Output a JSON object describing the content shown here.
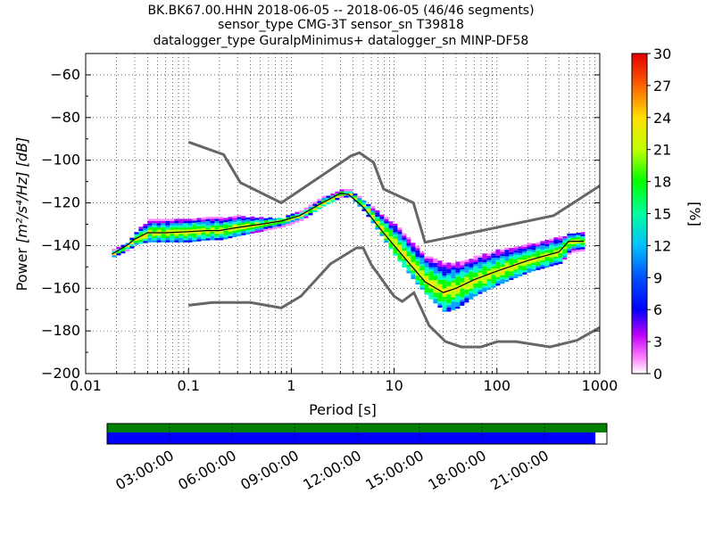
{
  "chart_data": [
    {
      "type": "heatmap",
      "title_lines": [
        "BK.BK67.00.HHN   2018-06-05 -- 2018-06-05  (46/46 segments)",
        "sensor_type CMG-3T sensor_sn T39818",
        "datalogger_type GuralpMinimus+ datalogger_sn MINP-DF58"
      ],
      "xlabel": "Period [s]",
      "ylabel_prefix": "Power",
      "ylabel_units": "[m²/s⁴/Hz] [dB]",
      "x_scale": "log",
      "xlim": [
        0.01,
        1000
      ],
      "ylim": [
        -200,
        -50
      ],
      "x_ticks": [
        0.01,
        0.1,
        1,
        10,
        100,
        1000
      ],
      "x_tick_labels": [
        "0.01",
        "0.1",
        "1",
        "10",
        "100",
        "1000"
      ],
      "y_ticks": [
        -200,
        -180,
        -160,
        -140,
        -120,
        -100,
        -80,
        -60
      ],
      "y_tick_labels": [
        "−200",
        "−180",
        "−160",
        "−140",
        "−120",
        "−100",
        "−80",
        "−60"
      ],
      "grid": true,
      "colorbar": {
        "label": "[%]",
        "range": [
          0,
          30
        ],
        "ticks": [
          0,
          3,
          6,
          9,
          12,
          15,
          18,
          21,
          24,
          27,
          30
        ],
        "tick_labels": [
          "0",
          "3",
          "6",
          "9",
          "12",
          "15",
          "18",
          "21",
          "24",
          "27",
          "30"
        ]
      },
      "series": [
        {
          "role": "new-high-noise-model",
          "color": "#666666",
          "points": [
            [
              0.1,
              -91.5
            ],
            [
              0.22,
              -97.4
            ],
            [
              0.32,
              -110.5
            ],
            [
              0.8,
              -120
            ],
            [
              3.8,
              -98
            ],
            [
              4.6,
              -96.5
            ],
            [
              6.3,
              -101
            ],
            [
              7.9,
              -113.5
            ],
            [
              15.4,
              -120
            ],
            [
              20,
              -138.5
            ],
            [
              354.8,
              -126
            ],
            [
              1000,
              -112
            ]
          ]
        },
        {
          "role": "new-low-noise-model",
          "color": "#666666",
          "points": [
            [
              0.1,
              -168
            ],
            [
              0.17,
              -166.7
            ],
            [
              0.4,
              -166.7
            ],
            [
              0.8,
              -169.2
            ],
            [
              1.24,
              -163.7
            ],
            [
              2.4,
              -148.6
            ],
            [
              4.3,
              -141.1
            ],
            [
              5,
              -141.1
            ],
            [
              6,
              -149
            ],
            [
              10,
              -163.8
            ],
            [
              12,
              -166.2
            ],
            [
              15.6,
              -162.1
            ],
            [
              21.9,
              -177.5
            ],
            [
              31.6,
              -185
            ],
            [
              45,
              -187.5
            ],
            [
              70,
              -187.5
            ],
            [
              101,
              -185
            ],
            [
              154,
              -185
            ],
            [
              328,
              -187.5
            ],
            [
              600,
              -184.4
            ],
            [
              1000,
              -178.4
            ]
          ]
        },
        {
          "role": "mode",
          "color": "#000000",
          "points": [
            [
              0.018,
              -144
            ],
            [
              0.025,
              -140
            ],
            [
              0.03,
              -137
            ],
            [
              0.04,
              -134
            ],
            [
              0.06,
              -134
            ],
            [
              0.1,
              -133.5
            ],
            [
              0.15,
              -133
            ],
            [
              0.2,
              -133
            ],
            [
              0.3,
              -131.5
            ],
            [
              0.5,
              -130
            ],
            [
              0.8,
              -128.5
            ],
            [
              1.2,
              -126
            ],
            [
              2,
              -120
            ],
            [
              3,
              -115.5
            ],
            [
              3.6,
              -116
            ],
            [
              5,
              -122
            ],
            [
              7,
              -131
            ],
            [
              10,
              -140
            ],
            [
              15,
              -150
            ],
            [
              20,
              -157
            ],
            [
              30,
              -162
            ],
            [
              40,
              -160
            ],
            [
              60,
              -156
            ],
            [
              100,
              -152
            ],
            [
              200,
              -147
            ],
            [
              400,
              -143
            ],
            [
              500,
              -138
            ],
            [
              700,
              -138
            ]
          ]
        }
      ],
      "density_band": {
        "periods": [
          0.018,
          0.025,
          0.03,
          0.04,
          0.06,
          0.1,
          0.15,
          0.2,
          0.3,
          0.5,
          0.8,
          1.2,
          2,
          3,
          3.6,
          5,
          7,
          10,
          15,
          20,
          30,
          40,
          60,
          100,
          200,
          400,
          500,
          700
        ],
        "low_db": [
          -145,
          -142,
          -139,
          -138,
          -138,
          -138,
          -137,
          -137,
          -135,
          -133,
          -131,
          -128,
          -121,
          -117,
          -117,
          -124,
          -134,
          -145,
          -156,
          -163,
          -171,
          -169,
          -163,
          -158,
          -152,
          -148,
          -143,
          -142
        ],
        "high_db": [
          -142,
          -138,
          -133,
          -128,
          -128,
          -127,
          -127,
          -127,
          -126,
          -127,
          -127,
          -124,
          -117,
          -114,
          -114,
          -119,
          -125,
          -130,
          -139,
          -145,
          -148,
          -148,
          -145,
          -142,
          -139,
          -136,
          -134,
          -134
        ]
      },
      "data_availability": {
        "tick_labels": [
          "03:00:00",
          "06:00:00",
          "09:00:00",
          "12:00:00",
          "15:00:00",
          "18:00:00",
          "21:00:00"
        ],
        "data_coverage": 1.0,
        "psd_coverage": 0.977,
        "data_color": "#008000",
        "psd_color": "#0000ff"
      }
    }
  ]
}
